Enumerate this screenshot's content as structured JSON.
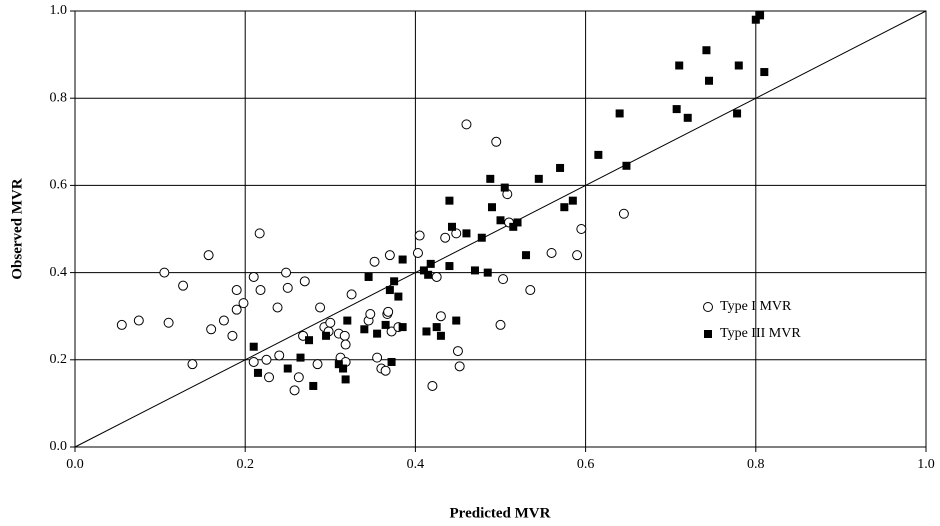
{
  "chart_data": {
    "type": "scatter",
    "x_label": "Predicted MVR",
    "y_label": "Observed MVR",
    "xlim": [
      0,
      1
    ],
    "ylim": [
      0,
      1
    ],
    "xticks": [
      {
        "value": 0,
        "label": "0.0"
      },
      {
        "value": 0.2,
        "label": "0.2"
      },
      {
        "value": 0.4,
        "label": "0.4"
      },
      {
        "value": 0.6,
        "label": "0.6"
      },
      {
        "value": 0.8,
        "label": "0.8"
      },
      {
        "value": 1,
        "label": "1.0"
      }
    ],
    "yticks": [
      {
        "value": 0,
        "label": "0.0"
      },
      {
        "value": 0.2,
        "label": "0.2"
      },
      {
        "value": 0.4,
        "label": "0.4"
      },
      {
        "value": 0.6,
        "label": "0.6"
      },
      {
        "value": 0.8,
        "label": "0.8"
      },
      {
        "value": 1,
        "label": "1.0"
      }
    ],
    "grid": true,
    "legend_position": "right",
    "series": [
      {
        "name": "Type I MVR",
        "marker": "circle",
        "color": "#ffffff",
        "x": [
          0.055,
          0.075,
          0.105,
          0.11,
          0.127,
          0.138,
          0.157,
          0.16,
          0.175,
          0.185,
          0.19,
          0.19,
          0.198,
          0.21,
          0.21,
          0.217,
          0.218,
          0.225,
          0.228,
          0.238,
          0.24,
          0.248,
          0.25,
          0.258,
          0.263,
          0.268,
          0.27,
          0.285,
          0.288,
          0.293,
          0.298,
          0.3,
          0.31,
          0.312,
          0.317,
          0.318,
          0.318,
          0.325,
          0.345,
          0.347,
          0.352,
          0.355,
          0.36,
          0.365,
          0.367,
          0.368,
          0.37,
          0.372,
          0.38,
          0.403,
          0.405,
          0.42,
          0.425,
          0.43,
          0.435,
          0.448,
          0.45,
          0.452,
          0.46,
          0.495,
          0.5,
          0.503,
          0.508,
          0.51,
          0.535,
          0.56,
          0.59,
          0.595,
          0.645
        ],
        "values": [
          0.28,
          0.29,
          0.4,
          0.285,
          0.37,
          0.19,
          0.44,
          0.27,
          0.29,
          0.255,
          0.36,
          0.315,
          0.33,
          0.39,
          0.195,
          0.49,
          0.36,
          0.2,
          0.16,
          0.32,
          0.21,
          0.4,
          0.365,
          0.13,
          0.16,
          0.255,
          0.38,
          0.19,
          0.32,
          0.275,
          0.265,
          0.285,
          0.26,
          0.205,
          0.255,
          0.235,
          0.195,
          0.35,
          0.29,
          0.305,
          0.425,
          0.205,
          0.18,
          0.175,
          0.305,
          0.31,
          0.44,
          0.265,
          0.275,
          0.445,
          0.485,
          0.14,
          0.39,
          0.3,
          0.48,
          0.49,
          0.22,
          0.185,
          0.74,
          0.7,
          0.28,
          0.385,
          0.58,
          0.515,
          0.36,
          0.445,
          0.44,
          0.5,
          0.535
        ]
      },
      {
        "name": "Type III MVR",
        "marker": "square",
        "color": "#000000",
        "x": [
          0.21,
          0.215,
          0.25,
          0.265,
          0.275,
          0.28,
          0.295,
          0.31,
          0.315,
          0.318,
          0.32,
          0.34,
          0.345,
          0.355,
          0.365,
          0.37,
          0.372,
          0.375,
          0.38,
          0.385,
          0.385,
          0.41,
          0.413,
          0.415,
          0.418,
          0.425,
          0.43,
          0.44,
          0.44,
          0.443,
          0.448,
          0.46,
          0.47,
          0.478,
          0.485,
          0.488,
          0.49,
          0.5,
          0.505,
          0.515,
          0.52,
          0.53,
          0.545,
          0.57,
          0.575,
          0.585,
          0.615,
          0.64,
          0.648,
          0.707,
          0.71,
          0.72,
          0.742,
          0.745,
          0.778,
          0.78,
          0.8,
          0.805,
          0.81
        ],
        "values": [
          0.23,
          0.17,
          0.18,
          0.205,
          0.245,
          0.14,
          0.255,
          0.19,
          0.18,
          0.155,
          0.29,
          0.27,
          0.39,
          0.26,
          0.28,
          0.36,
          0.195,
          0.38,
          0.345,
          0.43,
          0.275,
          0.405,
          0.265,
          0.395,
          0.42,
          0.275,
          0.255,
          0.415,
          0.565,
          0.505,
          0.29,
          0.49,
          0.405,
          0.48,
          0.4,
          0.615,
          0.55,
          0.52,
          0.595,
          0.505,
          0.515,
          0.44,
          0.615,
          0.64,
          0.55,
          0.565,
          0.67,
          0.765,
          0.645,
          0.775,
          0.875,
          0.755,
          0.91,
          0.84,
          0.765,
          0.875,
          0.98,
          0.99,
          0.86
        ]
      }
    ]
  }
}
